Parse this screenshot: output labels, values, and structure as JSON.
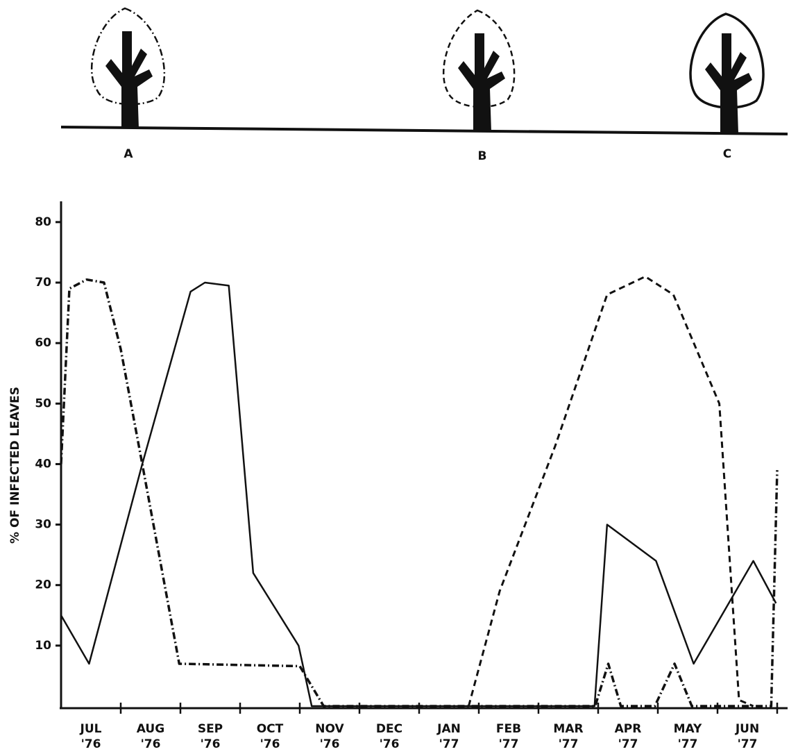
{
  "chart_data": {
    "type": "line",
    "ylabel": "% OF INFECTED LEAVES",
    "categories": [
      [
        "JUL",
        "'76"
      ],
      [
        "AUG",
        "'76"
      ],
      [
        "SEP",
        "'76"
      ],
      [
        "OCT",
        "'76"
      ],
      [
        "NOV",
        "'76"
      ],
      [
        "DEC",
        "'76"
      ],
      [
        "JAN",
        "'77"
      ],
      [
        "FEB",
        "'77"
      ],
      [
        "MAR",
        "'77"
      ],
      [
        "APR",
        "'77"
      ],
      [
        "MAY",
        "'77"
      ],
      [
        "JUN",
        "'77"
      ]
    ],
    "ylim": [
      0,
      83
    ],
    "yticks": [
      10,
      20,
      30,
      40,
      50,
      60,
      70,
      80
    ],
    "series": [
      {
        "name": "A",
        "color": "#111111",
        "style": "dash-dot",
        "x": [
          0,
          0.14,
          0.43,
          0.72,
          1.0,
          1.36,
          1.98,
          4.0,
          4.4,
          8.95,
          9.17,
          9.38,
          9.95,
          10.28,
          10.57,
          11.9,
          12.0
        ],
        "values": [
          40,
          69,
          70.5,
          70,
          59,
          40,
          7,
          6.6,
          0,
          0,
          7,
          0,
          0,
          7,
          0,
          0,
          39
        ]
      },
      {
        "name": "B",
        "color": "#111111",
        "style": "dashed",
        "x": [
          6.83,
          7.35,
          8.28,
          9.15,
          9.79,
          10.26,
          11.03,
          11.36,
          11.6
        ],
        "values": [
          0,
          19,
          43,
          68,
          71,
          68,
          50,
          1,
          0
        ]
      },
      {
        "name": "C",
        "color": "#111111",
        "style": "solid",
        "x": [
          0,
          0.47,
          1.36,
          2.17,
          2.41,
          2.81,
          3.22,
          3.98,
          4.2,
          8.94,
          9.15,
          9.97,
          10.6,
          11.6,
          11.98
        ],
        "values": [
          15,
          7,
          40,
          68.5,
          70,
          69.5,
          22,
          10,
          0,
          0,
          30,
          24,
          7,
          24,
          17
        ]
      }
    ]
  }
}
